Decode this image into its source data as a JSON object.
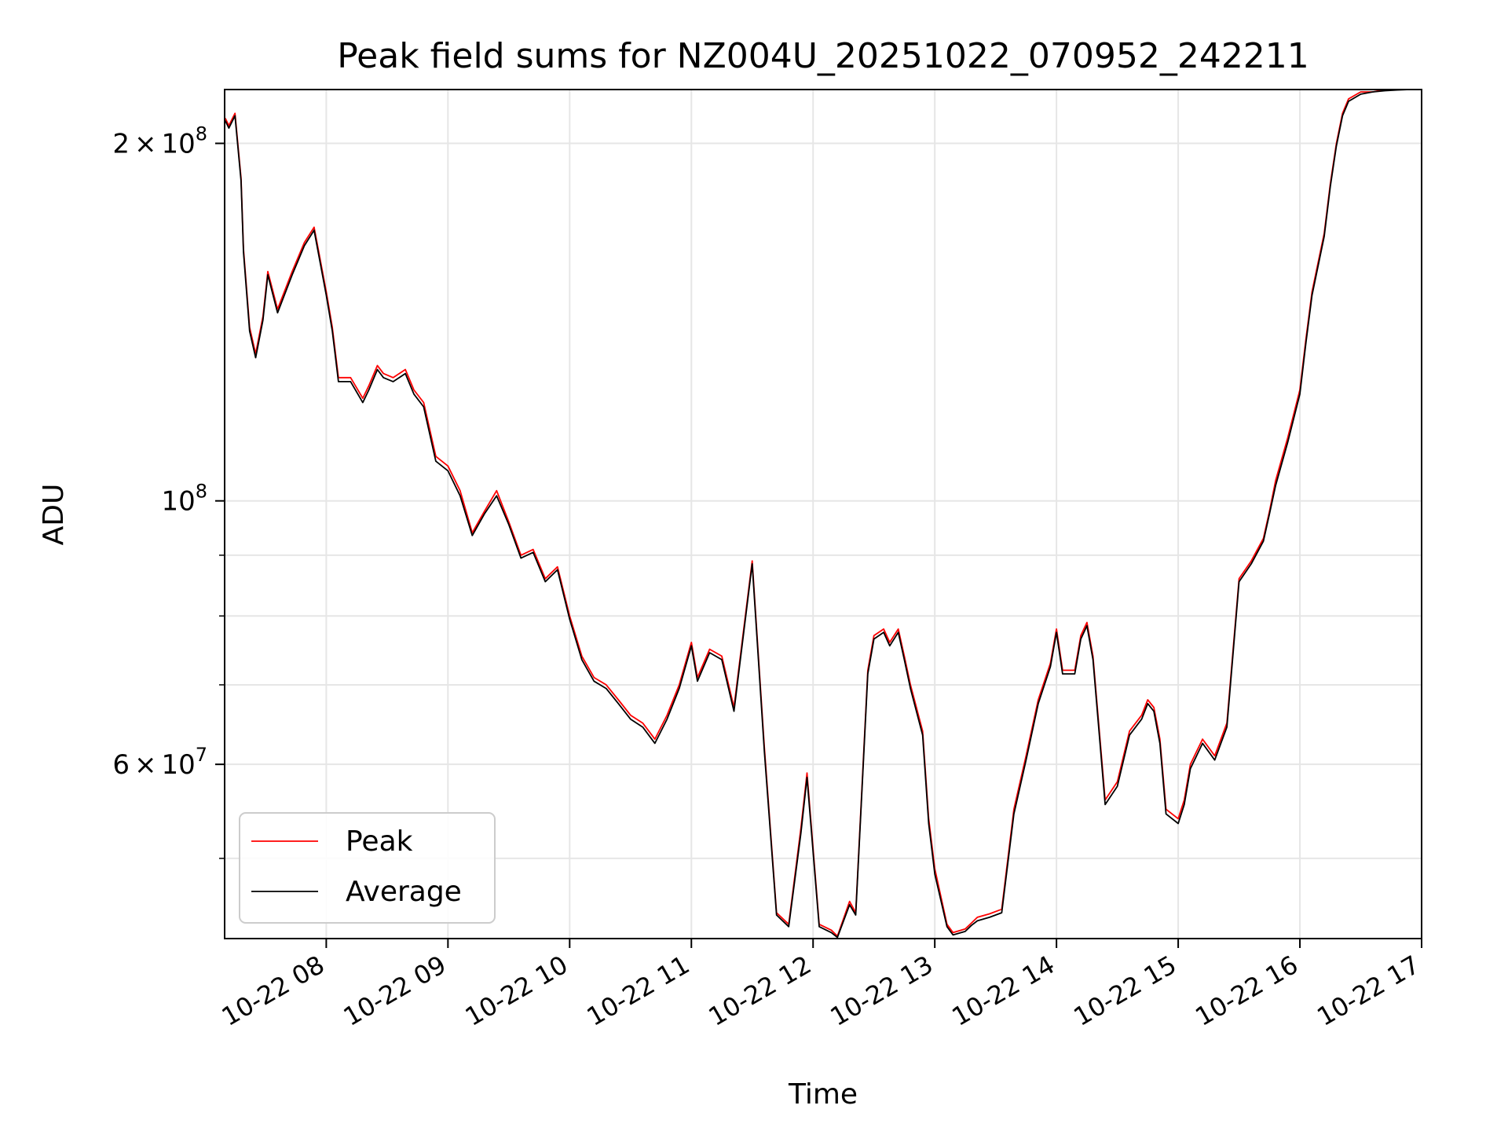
{
  "chart_data": {
    "type": "line",
    "title": "Peak field sums for NZ004U_20251022_070952_242211",
    "xlabel": "Time",
    "ylabel": "ADU",
    "y_scale": "log",
    "xlim_hours": [
      7.165,
      17.0
    ],
    "ylim": [
      42800000,
      222000000
    ],
    "grid": true,
    "legend_location": "lower-left",
    "x_ticks": [
      {
        "value": 8,
        "label": "10-22 08"
      },
      {
        "value": 9,
        "label": "10-22 09"
      },
      {
        "value": 10,
        "label": "10-22 10"
      },
      {
        "value": 11,
        "label": "10-22 11"
      },
      {
        "value": 12,
        "label": "10-22 12"
      },
      {
        "value": 13,
        "label": "10-22 13"
      },
      {
        "value": 14,
        "label": "10-22 14"
      },
      {
        "value": 15,
        "label": "10-22 15"
      },
      {
        "value": 16,
        "label": "10-22 16"
      },
      {
        "value": 17,
        "label": "10-22 17"
      }
    ],
    "y_ticks_major": [
      {
        "value": 60000000,
        "base": "6",
        "times": "×",
        "power_base": "10",
        "exponent": "7"
      },
      {
        "value": 100000000,
        "base": "",
        "times": "",
        "power_base": "10",
        "exponent": "8"
      },
      {
        "value": 200000000,
        "base": "2",
        "times": "×",
        "power_base": "10",
        "exponent": "8"
      }
    ],
    "y_ticks_minor": [
      50000000,
      70000000,
      80000000,
      90000000,
      300000000
    ],
    "series": [
      {
        "name": "Peak",
        "color": "#ff0000",
        "x": [
          7.17,
          7.2,
          7.25,
          7.3,
          7.32,
          7.37,
          7.42,
          7.48,
          7.52,
          7.6,
          7.72,
          7.82,
          7.9,
          8.0,
          8.05,
          8.1,
          8.2,
          8.3,
          8.35,
          8.42,
          8.47,
          8.55,
          8.65,
          8.72,
          8.8,
          8.9,
          9.0,
          9.1,
          9.2,
          9.3,
          9.4,
          9.5,
          9.6,
          9.7,
          9.8,
          9.9,
          10.0,
          10.1,
          10.2,
          10.3,
          10.4,
          10.5,
          10.6,
          10.7,
          10.8,
          10.9,
          11.0,
          11.05,
          11.15,
          11.25,
          11.35,
          11.5,
          11.6,
          11.7,
          11.8,
          11.9,
          11.95,
          12.05,
          12.15,
          12.2,
          12.3,
          12.35,
          12.45,
          12.5,
          12.58,
          12.63,
          12.7,
          12.75,
          12.8,
          12.9,
          12.95,
          13.0,
          13.1,
          13.15,
          13.25,
          13.3,
          13.35,
          13.45,
          13.55,
          13.65,
          13.75,
          13.85,
          13.95,
          14.0,
          14.05,
          14.15,
          14.2,
          14.25,
          14.3,
          14.4,
          14.5,
          14.6,
          14.7,
          14.75,
          14.8,
          14.85,
          14.9,
          15.0,
          15.05,
          15.1,
          15.2,
          15.3,
          15.4,
          15.5,
          15.6,
          15.7,
          15.75,
          15.8,
          15.9,
          16.0,
          16.05,
          16.1,
          16.2,
          16.25,
          16.3,
          16.35,
          16.4,
          16.5,
          16.6,
          16.7,
          16.8,
          16.9,
          17.0
        ],
        "values": [
          210000000,
          207000000,
          212000000,
          187000000,
          163000000,
          140000000,
          133000000,
          143000000,
          156000000,
          145000000,
          156000000,
          165000000,
          170000000,
          150000000,
          140000000,
          127000000,
          127000000,
          122000000,
          125000000,
          130000000,
          128000000,
          127000000,
          129000000,
          124000000,
          121000000,
          109000000,
          107000000,
          102000000,
          94000000,
          98000000,
          102000000,
          96000000,
          90000000,
          91000000,
          86000000,
          88000000,
          80000000,
          74000000,
          71000000,
          70000000,
          68000000,
          66000000,
          65000000,
          63000000,
          66000000,
          70000000,
          76000000,
          71000000,
          75000000,
          74000000,
          67000000,
          89000000,
          62000000,
          45000000,
          44000000,
          53000000,
          59000000,
          44000000,
          43500000,
          43000000,
          46000000,
          45000000,
          72000000,
          77000000,
          78000000,
          76000000,
          78000000,
          74000000,
          70000000,
          64000000,
          54000000,
          49000000,
          44000000,
          43300000,
          43600000,
          44100000,
          44600000,
          44900000,
          45300000,
          55000000,
          61000000,
          68000000,
          73000000,
          78000000,
          72000000,
          72000000,
          77000000,
          79000000,
          74000000,
          56000000,
          58000000,
          64000000,
          66000000,
          68000000,
          67000000,
          63000000,
          55000000,
          54000000,
          56000000,
          60000000,
          63000000,
          61000000,
          65000000,
          86000000,
          89000000,
          93000000,
          98000000,
          104000000,
          113000000,
          124000000,
          137000000,
          150000000,
          168000000,
          185000000,
          200000000,
          212000000,
          218000000,
          221000000,
          221000000,
          222000000,
          222000000,
          222000000,
          222000000
        ]
      },
      {
        "name": "Average",
        "color": "#000000",
        "x": [
          7.17,
          7.2,
          7.25,
          7.3,
          7.32,
          7.37,
          7.42,
          7.48,
          7.52,
          7.6,
          7.72,
          7.82,
          7.9,
          8.0,
          8.05,
          8.1,
          8.2,
          8.3,
          8.35,
          8.42,
          8.47,
          8.55,
          8.65,
          8.72,
          8.8,
          8.9,
          9.0,
          9.1,
          9.2,
          9.3,
          9.4,
          9.5,
          9.6,
          9.7,
          9.8,
          9.9,
          10.0,
          10.1,
          10.2,
          10.3,
          10.4,
          10.5,
          10.6,
          10.7,
          10.8,
          10.9,
          11.0,
          11.05,
          11.15,
          11.25,
          11.35,
          11.5,
          11.6,
          11.7,
          11.8,
          11.9,
          11.95,
          12.05,
          12.15,
          12.2,
          12.3,
          12.35,
          12.45,
          12.5,
          12.58,
          12.63,
          12.7,
          12.75,
          12.8,
          12.9,
          12.95,
          13.0,
          13.1,
          13.15,
          13.25,
          13.3,
          13.35,
          13.45,
          13.55,
          13.65,
          13.75,
          13.85,
          13.95,
          14.0,
          14.05,
          14.15,
          14.2,
          14.25,
          14.3,
          14.4,
          14.5,
          14.6,
          14.7,
          14.75,
          14.8,
          14.85,
          14.9,
          15.0,
          15.05,
          15.1,
          15.2,
          15.3,
          15.4,
          15.5,
          15.6,
          15.7,
          15.75,
          15.8,
          15.9,
          16.0,
          16.05,
          16.1,
          16.2,
          16.25,
          16.3,
          16.35,
          16.4,
          16.5,
          16.6,
          16.7,
          16.8,
          16.9,
          17.0
        ],
        "values": [
          209000000,
          206000000,
          211000000,
          186000000,
          162000000,
          139000000,
          132000000,
          142000000,
          155000000,
          144000000,
          155000000,
          164000000,
          169000000,
          149000000,
          139000000,
          126000000,
          126000000,
          121000000,
          124000000,
          129000000,
          127000000,
          126000000,
          128000000,
          123000000,
          120000000,
          108000000,
          106000000,
          101000000,
          93500000,
          97500000,
          101000000,
          95500000,
          89500000,
          90500000,
          85500000,
          87500000,
          79500000,
          73500000,
          70500000,
          69500000,
          67500000,
          65500000,
          64500000,
          62500000,
          65500000,
          69500000,
          75500000,
          70500000,
          74500000,
          73500000,
          66500000,
          88500000,
          61500000,
          44800000,
          43800000,
          52500000,
          58500000,
          43800000,
          43300000,
          42900000,
          45700000,
          44800000,
          71500000,
          76500000,
          77500000,
          75500000,
          77500000,
          73500000,
          69500000,
          63500000,
          53500000,
          48500000,
          43800000,
          43100000,
          43400000,
          43900000,
          44300000,
          44600000,
          45000000,
          54500000,
          60500000,
          67500000,
          72500000,
          77500000,
          71500000,
          71500000,
          76500000,
          78500000,
          73500000,
          55500000,
          57500000,
          63500000,
          65500000,
          67500000,
          66500000,
          62500000,
          54500000,
          53500000,
          55500000,
          59500000,
          62500000,
          60500000,
          64500000,
          85500000,
          88500000,
          92500000,
          97500000,
          103000000,
          112000000,
          123000000,
          136000000,
          149000000,
          167000000,
          184000000,
          199000000,
          211000000,
          217000000,
          220000000,
          221000000,
          221500000,
          221800000,
          222000000,
          222000000
        ]
      }
    ]
  }
}
